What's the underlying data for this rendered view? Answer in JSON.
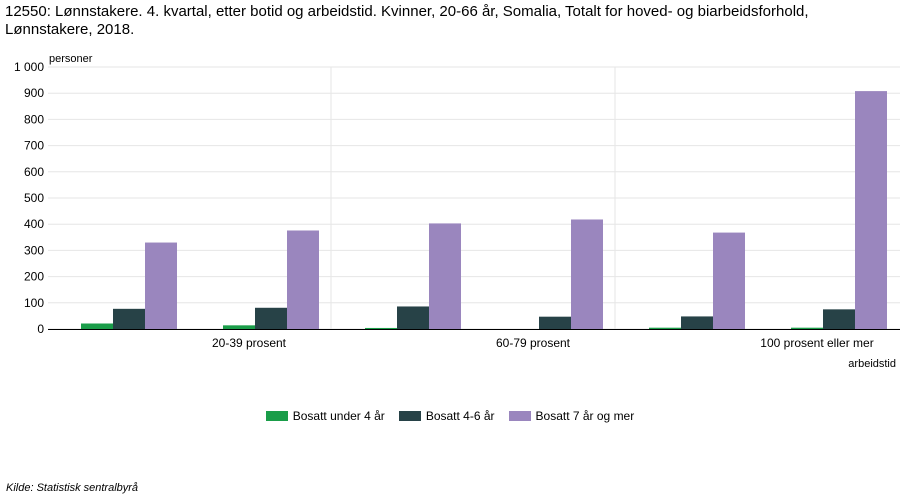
{
  "chart_data": {
    "type": "bar",
    "title": "12550: Lønnstakere. 4. kvartal, etter botid og arbeidstid. Kvinner, 20-66 år, Somalia, Totalt for hoved- og biarbeidsforhold, Lønnstakere, 2018.",
    "ylabel": "personer",
    "xlabel": "arbeidstid",
    "ylim": [
      0,
      1000
    ],
    "yticks": [
      "0",
      "100",
      "200",
      "300",
      "400",
      "500",
      "600",
      "700",
      "800",
      "900",
      "1 000"
    ],
    "categories": [
      "",
      "20-39  prosent",
      "",
      "60-79 prosent",
      "",
      "100 prosent eller mer"
    ],
    "series": [
      {
        "name": "Bosatt under 4 år",
        "color": "#1a9d49",
        "values": [
          21,
          14,
          4,
          0,
          5,
          5
        ]
      },
      {
        "name": "Bosatt 4-6 år",
        "color": "#274247",
        "values": [
          77,
          81,
          86,
          47,
          48,
          75
        ]
      },
      {
        "name": "Bosatt 7 år og mer",
        "color": "#9a86be",
        "values": [
          330,
          376,
          403,
          418,
          368,
          908
        ]
      }
    ],
    "grid": true,
    "legend": "bottom"
  },
  "source": "Kilde:  Statistisk sentralbyrå"
}
